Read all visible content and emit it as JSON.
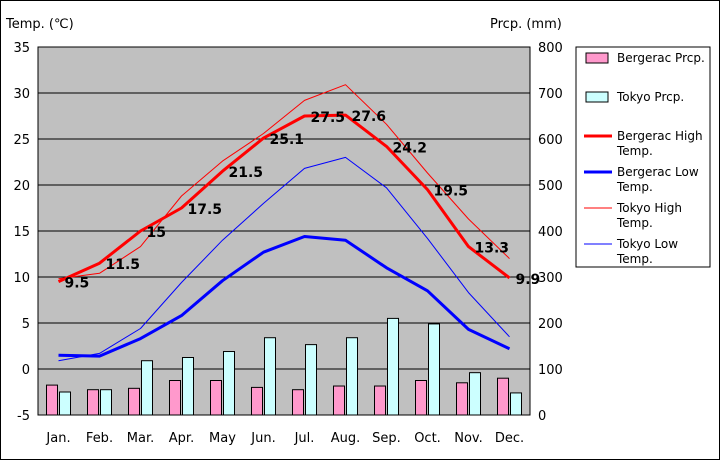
{
  "chart_data": {
    "type": "bar+line",
    "left_axis_title": "Temp. (℃)",
    "right_axis_title": "Prcp. (mm)",
    "left_ylim": [
      -5,
      35
    ],
    "left_ticks": [
      35,
      30,
      25,
      20,
      15,
      10,
      5,
      0,
      -5
    ],
    "right_ylim": [
      0,
      800
    ],
    "right_ticks": [
      800,
      700,
      600,
      500,
      400,
      300,
      200,
      100,
      0
    ],
    "categories": [
      "Jan.",
      "Feb.",
      "Mar.",
      "Apr.",
      "May",
      "Jun.",
      "Jul.",
      "Aug.",
      "Sep.",
      "Oct.",
      "Nov.",
      "Dec."
    ],
    "grid": true,
    "legend_position": "right",
    "bar_series": [
      {
        "name": "Bergerac Prcp.",
        "axis": "right",
        "color": "#ff99cc",
        "values": [
          65,
          55,
          58,
          75,
          75,
          60,
          55,
          63,
          63,
          75,
          70,
          80
        ]
      },
      {
        "name": "Tokyo Prcp.",
        "axis": "right",
        "color": "#ccffff",
        "values": [
          50,
          55,
          118,
          125,
          138,
          168,
          153,
          168,
          210,
          198,
          92,
          48
        ]
      }
    ],
    "line_series": [
      {
        "name": "Bergerac High Temp.",
        "axis": "left",
        "color": "#ff0000",
        "width": "thick",
        "values": [
          9.5,
          11.5,
          15,
          17.5,
          21.5,
          25.1,
          27.5,
          27.6,
          24.2,
          19.5,
          13.3,
          9.9
        ],
        "labels": [
          "9.5",
          "11.5",
          "15",
          "17.5",
          "21.5",
          "25.1",
          "27.5",
          "27.6",
          "24.2",
          "19.5",
          "13.3",
          "9.9"
        ]
      },
      {
        "name": "Bergerac Low Temp.",
        "axis": "left",
        "color": "#0000ff",
        "width": "thick",
        "values": [
          1.5,
          1.4,
          3.3,
          5.8,
          9.6,
          12.7,
          14.4,
          14.0,
          11.0,
          8.5,
          4.3,
          2.2
        ]
      },
      {
        "name": "Tokyo High Temp.",
        "axis": "left",
        "color": "#ff0000",
        "width": "thin",
        "values": [
          9.8,
          10.4,
          13.3,
          18.8,
          22.6,
          25.6,
          29.2,
          30.9,
          26.6,
          21.3,
          16.3,
          12.0
        ]
      },
      {
        "name": "Tokyo Low Temp.",
        "axis": "left",
        "color": "#0000ff",
        "width": "thin",
        "values": [
          0.9,
          1.7,
          4.4,
          9.4,
          14.0,
          18.0,
          21.8,
          23.0,
          19.7,
          14.2,
          8.3,
          3.5
        ]
      }
    ]
  }
}
